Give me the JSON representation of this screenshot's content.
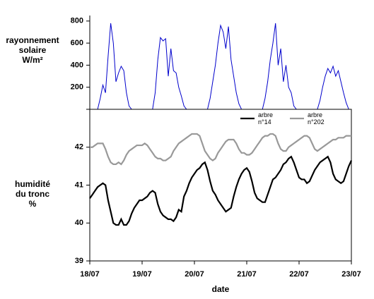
{
  "chart_data": [
    {
      "type": "line",
      "ylabel": "rayonnement\nsolaire\nW/m²",
      "x": [
        0,
        0.05,
        0.1,
        0.15,
        0.2,
        0.25,
        0.3,
        0.35,
        0.4,
        0.45,
        0.5,
        0.55,
        0.6,
        0.65,
        0.7,
        0.75,
        0.8,
        0.85,
        0.9,
        0.95,
        1,
        1.05,
        1.1,
        1.15,
        1.2,
        1.25,
        1.3,
        1.35,
        1.4,
        1.45,
        1.5,
        1.55,
        1.6,
        1.65,
        1.7,
        1.75,
        1.8,
        1.85,
        1.9,
        1.95,
        2,
        2.05,
        2.1,
        2.15,
        2.2,
        2.25,
        2.3,
        2.35,
        2.4,
        2.45,
        2.5,
        2.55,
        2.6,
        2.65,
        2.7,
        2.75,
        2.8,
        2.85,
        2.9,
        2.95,
        3,
        3.05,
        3.1,
        3.15,
        3.2,
        3.25,
        3.3,
        3.35,
        3.4,
        3.45,
        3.5,
        3.55,
        3.6,
        3.65,
        3.7,
        3.75,
        3.8,
        3.85,
        3.9,
        3.95,
        4,
        4.05,
        4.1,
        4.15,
        4.2,
        4.25,
        4.3,
        4.35,
        4.4,
        4.45,
        4.5,
        4.55,
        4.6,
        4.65,
        4.7,
        4.75,
        4.8,
        4.85,
        4.9,
        4.95,
        5
      ],
      "series": [
        {
          "color": "#0000cc",
          "values": [
            0,
            0,
            0,
            0,
            100,
            220,
            150,
            480,
            780,
            600,
            250,
            330,
            390,
            350,
            150,
            30,
            0,
            0,
            0,
            0,
            0,
            0,
            0,
            0,
            0,
            150,
            450,
            650,
            620,
            640,
            300,
            550,
            350,
            330,
            200,
            120,
            30,
            0,
            0,
            0,
            0,
            0,
            0,
            0,
            0,
            0,
            100,
            250,
            400,
            600,
            760,
            700,
            550,
            750,
            450,
            300,
            150,
            50,
            0,
            0,
            0,
            0,
            0,
            0,
            0,
            0,
            0,
            100,
            250,
            450,
            600,
            780,
            400,
            550,
            250,
            400,
            200,
            150,
            30,
            0,
            0,
            0,
            0,
            0,
            0,
            0,
            0,
            0,
            80,
            200,
            300,
            370,
            330,
            390,
            300,
            350,
            250,
            150,
            60,
            0,
            0
          ]
        }
      ],
      "xlim": [
        0,
        5
      ],
      "ylim": [
        0,
        850
      ],
      "yticks": [
        200,
        400,
        600,
        800
      ]
    },
    {
      "type": "line",
      "ylabel": "humidité\ndu tronc\n%",
      "xlabel": "date",
      "x": [
        0,
        0.05,
        0.1,
        0.15,
        0.2,
        0.25,
        0.3,
        0.35,
        0.4,
        0.45,
        0.5,
        0.55,
        0.6,
        0.65,
        0.7,
        0.75,
        0.8,
        0.85,
        0.9,
        0.95,
        1,
        1.05,
        1.1,
        1.15,
        1.2,
        1.25,
        1.3,
        1.35,
        1.4,
        1.45,
        1.5,
        1.55,
        1.6,
        1.65,
        1.7,
        1.75,
        1.8,
        1.85,
        1.9,
        1.95,
        2,
        2.05,
        2.1,
        2.15,
        2.2,
        2.25,
        2.3,
        2.35,
        2.4,
        2.45,
        2.5,
        2.55,
        2.6,
        2.65,
        2.7,
        2.75,
        2.8,
        2.85,
        2.9,
        2.95,
        3,
        3.05,
        3.1,
        3.15,
        3.2,
        3.25,
        3.3,
        3.35,
        3.4,
        3.45,
        3.5,
        3.55,
        3.6,
        3.65,
        3.7,
        3.75,
        3.8,
        3.85,
        3.9,
        3.95,
        4,
        4.05,
        4.1,
        4.15,
        4.2,
        4.25,
        4.3,
        4.35,
        4.4,
        4.45,
        4.5,
        4.55,
        4.6,
        4.65,
        4.7,
        4.75,
        4.8,
        4.85,
        4.9,
        4.95,
        5
      ],
      "series": [
        {
          "name": "arbre\nn°14",
          "color": "#000000",
          "values": [
            40.65,
            40.75,
            40.85,
            40.95,
            41.0,
            41.05,
            41.0,
            40.6,
            40.3,
            40.0,
            39.95,
            39.95,
            40.1,
            39.95,
            39.95,
            40.05,
            40.25,
            40.4,
            40.5,
            40.6,
            40.6,
            40.65,
            40.7,
            40.8,
            40.85,
            40.8,
            40.5,
            40.3,
            40.2,
            40.15,
            40.1,
            40.1,
            40.05,
            40.15,
            40.35,
            40.3,
            40.7,
            40.85,
            41.05,
            41.2,
            41.3,
            41.4,
            41.45,
            41.55,
            41.6,
            41.4,
            41.1,
            40.85,
            40.75,
            40.6,
            40.5,
            40.4,
            40.3,
            40.35,
            40.4,
            40.7,
            40.95,
            41.15,
            41.3,
            41.4,
            41.45,
            41.35,
            41.1,
            40.8,
            40.65,
            40.6,
            40.55,
            40.55,
            40.75,
            40.95,
            41.15,
            41.2,
            41.3,
            41.4,
            41.55,
            41.6,
            41.7,
            41.75,
            41.6,
            41.4,
            41.2,
            41.15,
            41.15,
            41.05,
            41.1,
            41.25,
            41.4,
            41.5,
            41.6,
            41.65,
            41.7,
            41.75,
            41.6,
            41.3,
            41.15,
            41.1,
            41.05,
            41.1,
            41.3,
            41.5,
            41.65
          ]
        },
        {
          "name": "arbre\nn°202",
          "color": "#999999",
          "values": [
            42.0,
            42.0,
            42.05,
            42.1,
            42.1,
            42.1,
            41.95,
            41.75,
            41.6,
            41.55,
            41.55,
            41.6,
            41.55,
            41.65,
            41.8,
            41.9,
            41.95,
            42.0,
            42.05,
            42.05,
            42.05,
            42.1,
            42.05,
            41.95,
            41.85,
            41.75,
            41.7,
            41.7,
            41.65,
            41.65,
            41.7,
            41.75,
            41.9,
            42.0,
            42.1,
            42.15,
            42.2,
            42.25,
            42.3,
            42.35,
            42.35,
            42.35,
            42.3,
            42.1,
            41.9,
            41.8,
            41.7,
            41.65,
            41.7,
            41.85,
            41.95,
            42.05,
            42.15,
            42.2,
            42.2,
            42.2,
            42.1,
            41.95,
            41.85,
            41.85,
            41.8,
            41.8,
            41.85,
            41.95,
            42.05,
            42.15,
            42.25,
            42.3,
            42.3,
            42.35,
            42.35,
            42.3,
            42.1,
            41.95,
            41.9,
            41.9,
            42.0,
            42.05,
            42.1,
            42.15,
            42.2,
            42.25,
            42.3,
            42.3,
            42.25,
            42.1,
            41.95,
            41.9,
            41.95,
            42.0,
            42.05,
            42.1,
            42.15,
            42.2,
            42.2,
            42.25,
            42.25,
            42.25,
            42.3,
            42.3,
            42.3
          ]
        }
      ],
      "xlim": [
        0,
        5
      ],
      "ylim": [
        39,
        43
      ],
      "yticks": [
        39,
        40,
        41,
        42
      ],
      "xticks": [
        {
          "value": 0,
          "label": "18/07"
        },
        {
          "value": 1,
          "label": "19/07"
        },
        {
          "value": 2,
          "label": "20/07"
        },
        {
          "value": 3,
          "label": "21/07"
        },
        {
          "value": 4,
          "label": "22/07"
        },
        {
          "value": 5,
          "label": "23/07"
        }
      ]
    }
  ]
}
